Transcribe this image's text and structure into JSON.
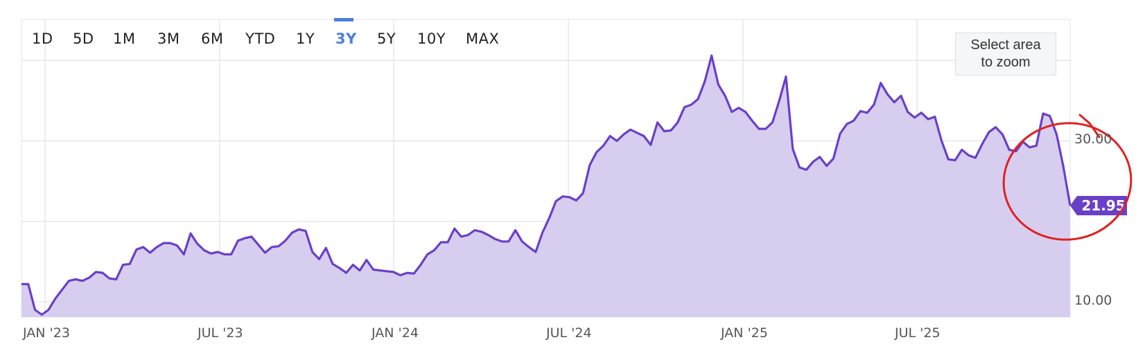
{
  "toolbar": {
    "ranges": [
      "1D",
      "5D",
      "1M",
      "3M",
      "6M",
      "YTD",
      "1Y",
      "3Y",
      "5Y",
      "10Y",
      "MAX"
    ],
    "active_range": "3Y",
    "zoom_hint_line1": "Select area",
    "zoom_hint_line2": "to zoom"
  },
  "colors": {
    "line": "#6a3fc8",
    "fill": "#d7cdef",
    "last_value_badge": "#6a3fc8",
    "annotation": "#e02020",
    "active_range": "#4a7fe0"
  },
  "chart_data": {
    "type": "area",
    "title": "",
    "xlabel": "",
    "ylabel": "",
    "x_tick_labels": [
      "JAN '23",
      "JUL '23",
      "JAN '24",
      "JUL '24",
      "JAN '25",
      "JUL '25"
    ],
    "y_tick_labels": [
      "10.00",
      "30.00"
    ],
    "ylim": [
      8.1,
      45.1
    ],
    "grid": true,
    "last_value_label": "21.95",
    "series": [
      {
        "values": [
          12.2,
          12.2,
          9.0,
          8.4,
          9.0,
          10.4,
          11.5,
          12.6,
          12.8,
          12.6,
          13.0,
          13.7,
          13.6,
          12.9,
          12.8,
          14.6,
          14.7,
          16.5,
          16.8,
          16.1,
          16.8,
          17.3,
          17.3,
          17.0,
          15.9,
          18.5,
          17.2,
          16.4,
          16.0,
          16.2,
          15.9,
          15.9,
          17.6,
          17.9,
          18.1,
          17.1,
          16.1,
          16.8,
          16.9,
          17.6,
          18.6,
          19.0,
          18.8,
          16.2,
          15.3,
          16.7,
          14.7,
          14.2,
          13.6,
          14.6,
          13.9,
          15.2,
          14.0,
          13.9,
          13.8,
          13.7,
          13.3,
          13.6,
          13.5,
          14.6,
          15.9,
          16.4,
          17.4,
          17.4,
          19.1,
          18.1,
          18.3,
          18.9,
          18.7,
          18.3,
          17.8,
          17.5,
          17.5,
          18.9,
          17.5,
          16.8,
          16.2,
          18.6,
          20.4,
          22.5,
          23.1,
          23.0,
          22.6,
          23.5,
          27.0,
          28.6,
          29.4,
          30.6,
          30.0,
          30.8,
          31.4,
          31.0,
          30.6,
          29.5,
          32.3,
          31.2,
          31.3,
          32.3,
          34.2,
          34.5,
          35.2,
          37.4,
          40.6,
          37.0,
          35.6,
          33.6,
          34.1,
          33.6,
          32.5,
          31.5,
          31.5,
          32.3,
          35.0,
          38.0,
          29.0,
          26.7,
          26.4,
          27.4,
          28.0,
          26.9,
          27.8,
          30.9,
          32.1,
          32.5,
          33.7,
          33.5,
          34.5,
          37.2,
          35.8,
          34.8,
          35.6,
          33.6,
          32.9,
          33.5,
          32.7,
          33.0,
          30.0,
          27.7,
          27.6,
          28.9,
          28.2,
          27.9,
          29.6,
          31.1,
          31.7,
          30.8,
          28.9,
          28.7,
          29.9,
          29.2,
          29.4,
          33.4,
          33.1,
          30.8,
          26.8,
          21.95
        ]
      }
    ]
  }
}
